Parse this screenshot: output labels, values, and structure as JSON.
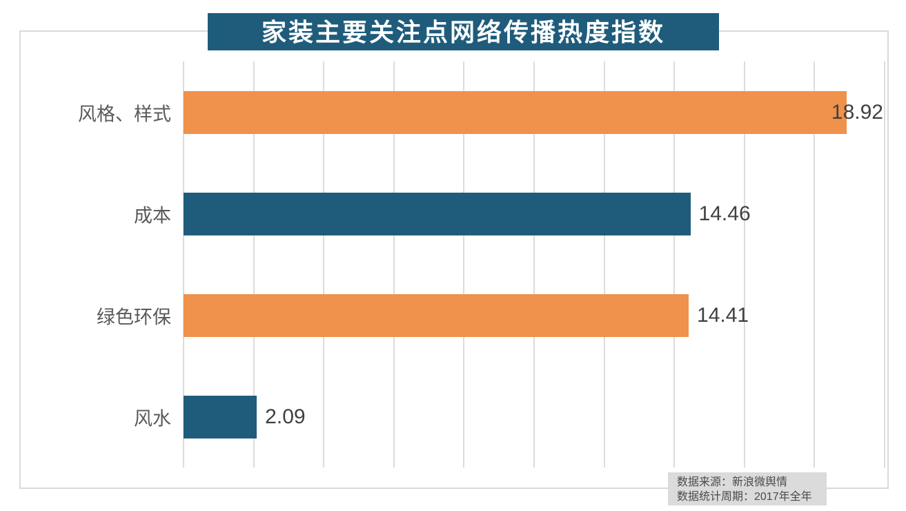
{
  "title": "家装主要关注点网络传播热度指数",
  "source": {
    "lines": [
      "数据来源：新浪微舆情",
      "数据统计周期：2017年全年"
    ]
  },
  "colors": {
    "title_bg": "#1F5C7C",
    "title_text": "#FFFFFF",
    "bar_orange": "#F0914C",
    "bar_teal": "#1F5C7C",
    "grid": "#DCDCDC",
    "category_text": "#595959",
    "value_text": "#404040",
    "source_bg": "#DBDBDB",
    "source_text": "#4A4A4A"
  },
  "chart_data": {
    "type": "bar",
    "orientation": "horizontal",
    "title": "家装主要关注点网络传播热度指数",
    "categories": [
      "风格、样式",
      "成本",
      "绿色环保",
      "风水"
    ],
    "values": [
      18.92,
      14.46,
      14.41,
      2.09
    ],
    "value_labels": [
      "18.92",
      "14.46",
      "14.41",
      "2.09"
    ],
    "bar_colors": [
      "#F0914C",
      "#1F5C7C",
      "#F0914C",
      "#1F5C7C"
    ],
    "xlabel": "",
    "ylabel": "",
    "xlim": [
      0,
      20
    ],
    "grid_step": 2,
    "grid": true,
    "legend": false,
    "x_tick_labels_visible": false,
    "annotations": [
      "数据来源：新浪微舆情",
      "数据统计周期：2017年全年"
    ]
  }
}
